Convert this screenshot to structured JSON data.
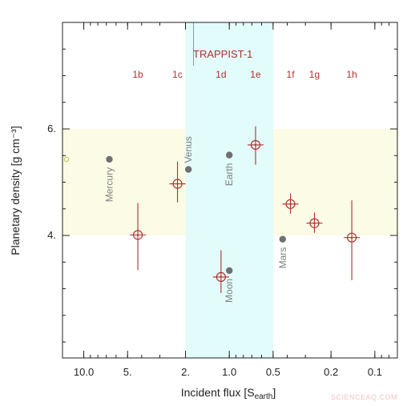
{
  "chart_data": {
    "type": "scatter",
    "title": "",
    "annotation": "TRAPPIST-1",
    "xlabel_main": "Incident flux [S",
    "xlabel_sub": "earth",
    "xlabel_end": "]",
    "ylabel": "Planetary density [g cm⁻³]",
    "xscale": "log",
    "x_reversed": true,
    "xlim": [
      14,
      0.07
    ],
    "ylim": [
      1.7,
      8.0
    ],
    "x_ticks": [
      {
        "value": 10,
        "label": "10.0"
      },
      {
        "value": 5,
        "label": "5."
      },
      {
        "value": 2,
        "label": "2."
      },
      {
        "value": 1,
        "label": "1.0"
      },
      {
        "value": 0.5,
        "label": "0.5"
      },
      {
        "value": 0.2,
        "label": "0.2"
      },
      {
        "value": 0.1,
        "label": "0.1"
      }
    ],
    "y_ticks": [
      {
        "value": 4,
        "label": "4."
      },
      {
        "value": 6,
        "label": "6."
      }
    ],
    "bands": [
      {
        "kind": "density",
        "y_range": [
          4.0,
          6.0
        ],
        "color": "#fbfbe6"
      },
      {
        "kind": "flux",
        "x_range": [
          2.0,
          0.5
        ],
        "color": "#e2fbfb"
      }
    ],
    "annotation_line_x": 2.0,
    "trappist_planets": {
      "color": "#b03030",
      "points": [
        {
          "name": "1b",
          "x": 4.25,
          "y": 4.01,
          "yerr_low": 0.66,
          "yerr_high": 0.6
        },
        {
          "name": "1c",
          "x": 2.27,
          "y": 4.97,
          "yerr_low": 0.35,
          "yerr_high": 0.42
        },
        {
          "name": "1d",
          "x": 1.14,
          "y": 3.22,
          "yerr_low": 0.3,
          "yerr_high": 0.5
        },
        {
          "name": "1e",
          "x": 0.66,
          "y": 5.7,
          "yerr_low": 0.37,
          "yerr_high": 0.35
        },
        {
          "name": "1f",
          "x": 0.38,
          "y": 4.59,
          "yerr_low": 0.18,
          "yerr_high": 0.2
        },
        {
          "name": "1g",
          "x": 0.26,
          "y": 4.23,
          "yerr_low": 0.18,
          "yerr_high": 0.2
        },
        {
          "name": "1h",
          "x": 0.144,
          "y": 3.96,
          "yerr_low": 0.8,
          "yerr_high": 0.7
        }
      ]
    },
    "solar_system": {
      "color": "#707070",
      "points": [
        {
          "name": "Mercury",
          "x": 6.67,
          "y": 5.43
        },
        {
          "name": "Venus",
          "x": 1.91,
          "y": 5.24
        },
        {
          "name": "Earth",
          "x": 1.0,
          "y": 5.51
        },
        {
          "name": "Moon",
          "x": 1.0,
          "y": 3.34
        },
        {
          "name": "Mars",
          "x": 0.43,
          "y": 3.93
        }
      ]
    },
    "edge_marker": {
      "x": 14,
      "y": 5.43,
      "color": "#c8c85a"
    }
  },
  "watermark": "SCIENCEAQ.COM"
}
